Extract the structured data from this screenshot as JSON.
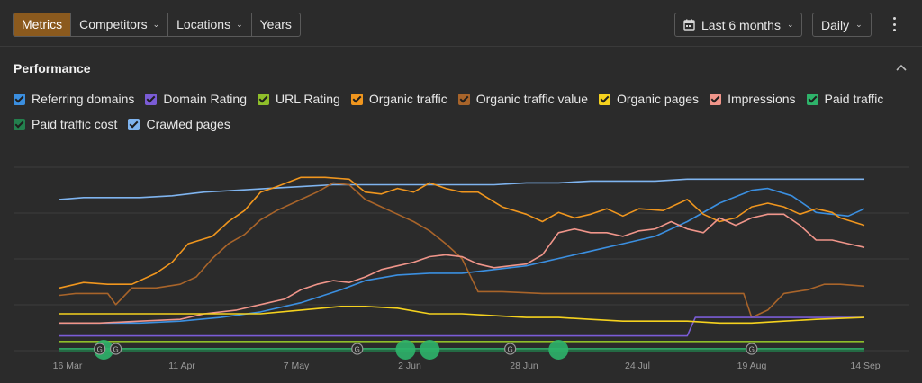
{
  "toolbar": {
    "tabs": [
      {
        "label": "Metrics",
        "active": true,
        "dropdown": false
      },
      {
        "label": "Competitors",
        "active": false,
        "dropdown": true
      },
      {
        "label": "Locations",
        "active": false,
        "dropdown": true
      },
      {
        "label": "Years",
        "active": false,
        "dropdown": false
      }
    ],
    "date_range": "Last 6 months",
    "granularity": "Daily",
    "icons": {
      "calendar": "calendar-icon",
      "more": "more-vertical-icon"
    }
  },
  "section": {
    "title": "Performance",
    "collapse_icon": "chevron-up-icon"
  },
  "legend": [
    {
      "label": "Referring domains",
      "color": "#3b8fe0",
      "checked": true
    },
    {
      "label": "Domain Rating",
      "color": "#7b5cd6",
      "checked": true
    },
    {
      "label": "URL Rating",
      "color": "#8fbf2a",
      "checked": true
    },
    {
      "label": "Organic traffic",
      "color": "#f0961e",
      "checked": true
    },
    {
      "label": "Organic traffic value",
      "color": "#a8642a",
      "checked": true
    },
    {
      "label": "Organic pages",
      "color": "#f5d21e",
      "checked": true
    },
    {
      "label": "Impressions",
      "color": "#f0958a",
      "checked": true
    },
    {
      "label": "Paid traffic",
      "color": "#2eb36a",
      "checked": true
    },
    {
      "label": "Paid traffic cost",
      "color": "#23804d",
      "checked": true
    },
    {
      "label": "Crawled pages",
      "color": "#7fb4ef",
      "checked": true
    }
  ],
  "chart_data": {
    "type": "line",
    "x_ticks": [
      "16 Mar",
      "11 Apr",
      "7 May",
      "2 Jun",
      "28 Jun",
      "24 Jul",
      "19 Aug",
      "14 Sep"
    ],
    "grid": true,
    "ylim": [
      0,
      100
    ],
    "series": [
      {
        "name": "Crawled pages",
        "color": "#7fb4ef",
        "values": [
          [
            0,
            82
          ],
          [
            3,
            83
          ],
          [
            6,
            83
          ],
          [
            10,
            83
          ],
          [
            14,
            84
          ],
          [
            18,
            86
          ],
          [
            22,
            87
          ],
          [
            26,
            88
          ],
          [
            30,
            89
          ],
          [
            34,
            90
          ],
          [
            38,
            90
          ],
          [
            42,
            90
          ],
          [
            46,
            90
          ],
          [
            50,
            90
          ],
          [
            54,
            90
          ],
          [
            58,
            91
          ],
          [
            62,
            91
          ],
          [
            66,
            92
          ],
          [
            70,
            92
          ],
          [
            74,
            92
          ],
          [
            78,
            93
          ],
          [
            82,
            93
          ],
          [
            86,
            93
          ],
          [
            90,
            93
          ],
          [
            94,
            93
          ],
          [
            100,
            93
          ]
        ]
      },
      {
        "name": "Referring domains",
        "color": "#3b8fe0",
        "values": [
          [
            0,
            15
          ],
          [
            5,
            15
          ],
          [
            10,
            15
          ],
          [
            15,
            16
          ],
          [
            20,
            18
          ],
          [
            25,
            21
          ],
          [
            30,
            26
          ],
          [
            35,
            33
          ],
          [
            38,
            38
          ],
          [
            42,
            41
          ],
          [
            46,
            42
          ],
          [
            50,
            42
          ],
          [
            54,
            44
          ],
          [
            58,
            46
          ],
          [
            62,
            50
          ],
          [
            66,
            54
          ],
          [
            70,
            58
          ],
          [
            74,
            62
          ],
          [
            78,
            70
          ],
          [
            82,
            80
          ],
          [
            86,
            87
          ],
          [
            88,
            88
          ],
          [
            91,
            84
          ],
          [
            94,
            75
          ],
          [
            98,
            73
          ],
          [
            100,
            77
          ]
        ]
      },
      {
        "name": "Organic traffic",
        "color": "#f0961e",
        "values": [
          [
            0,
            34
          ],
          [
            3,
            37
          ],
          [
            6,
            36
          ],
          [
            9,
            36
          ],
          [
            12,
            42
          ],
          [
            14,
            48
          ],
          [
            16,
            58
          ],
          [
            19,
            62
          ],
          [
            21,
            70
          ],
          [
            23,
            76
          ],
          [
            25,
            86
          ],
          [
            27,
            89
          ],
          [
            30,
            94
          ],
          [
            33,
            94
          ],
          [
            36,
            93
          ],
          [
            38,
            86
          ],
          [
            40,
            85
          ],
          [
            42,
            88
          ],
          [
            44,
            86
          ],
          [
            46,
            91
          ],
          [
            48,
            88
          ],
          [
            50,
            86
          ],
          [
            52,
            86
          ],
          [
            55,
            78
          ],
          [
            58,
            74
          ],
          [
            60,
            70
          ],
          [
            62,
            75
          ],
          [
            64,
            72
          ],
          [
            66,
            74
          ],
          [
            68,
            77
          ],
          [
            70,
            73
          ],
          [
            72,
            77
          ],
          [
            75,
            76
          ],
          [
            78,
            82
          ],
          [
            80,
            74
          ],
          [
            82,
            70
          ],
          [
            84,
            72
          ],
          [
            86,
            78
          ],
          [
            88,
            80
          ],
          [
            90,
            78
          ],
          [
            92,
            74
          ],
          [
            94,
            77
          ],
          [
            96,
            75
          ],
          [
            97,
            72
          ],
          [
            100,
            68
          ]
        ]
      },
      {
        "name": "Organic traffic value",
        "color": "#a8642a",
        "values": [
          [
            0,
            30
          ],
          [
            2,
            31
          ],
          [
            6,
            31
          ],
          [
            7,
            25
          ],
          [
            9,
            34
          ],
          [
            12,
            34
          ],
          [
            15,
            36
          ],
          [
            17,
            40
          ],
          [
            19,
            50
          ],
          [
            21,
            58
          ],
          [
            23,
            63
          ],
          [
            25,
            71
          ],
          [
            27,
            76
          ],
          [
            30,
            82
          ],
          [
            32,
            86
          ],
          [
            34,
            91
          ],
          [
            36,
            90
          ],
          [
            38,
            82
          ],
          [
            40,
            78
          ],
          [
            42,
            74
          ],
          [
            44,
            70
          ],
          [
            46,
            65
          ],
          [
            48,
            58
          ],
          [
            50,
            50
          ],
          [
            52,
            32
          ],
          [
            55,
            32
          ],
          [
            60,
            31
          ],
          [
            65,
            31
          ],
          [
            70,
            31
          ],
          [
            75,
            31
          ],
          [
            80,
            31
          ],
          [
            85,
            31
          ],
          [
            86,
            18
          ],
          [
            88,
            22
          ],
          [
            90,
            31
          ],
          [
            93,
            33
          ],
          [
            95,
            36
          ],
          [
            97,
            36
          ],
          [
            100,
            35
          ]
        ]
      },
      {
        "name": "Impressions",
        "color": "#f0958a",
        "values": [
          [
            0,
            15
          ],
          [
            5,
            15
          ],
          [
            10,
            16
          ],
          [
            15,
            17
          ],
          [
            18,
            20
          ],
          [
            22,
            22
          ],
          [
            26,
            26
          ],
          [
            28,
            28
          ],
          [
            30,
            33
          ],
          [
            32,
            36
          ],
          [
            34,
            38
          ],
          [
            36,
            37
          ],
          [
            38,
            40
          ],
          [
            40,
            44
          ],
          [
            42,
            46
          ],
          [
            44,
            48
          ],
          [
            46,
            51
          ],
          [
            48,
            52
          ],
          [
            50,
            51
          ],
          [
            52,
            47
          ],
          [
            54,
            45
          ],
          [
            56,
            46
          ],
          [
            58,
            47
          ],
          [
            60,
            52
          ],
          [
            62,
            64
          ],
          [
            64,
            66
          ],
          [
            66,
            64
          ],
          [
            68,
            64
          ],
          [
            70,
            62
          ],
          [
            72,
            65
          ],
          [
            74,
            66
          ],
          [
            76,
            70
          ],
          [
            78,
            66
          ],
          [
            80,
            64
          ],
          [
            82,
            72
          ],
          [
            84,
            68
          ],
          [
            86,
            72
          ],
          [
            88,
            74
          ],
          [
            90,
            74
          ],
          [
            92,
            68
          ],
          [
            94,
            60
          ],
          [
            96,
            60
          ],
          [
            98,
            58
          ],
          [
            100,
            56
          ]
        ]
      },
      {
        "name": "Domain Rating",
        "color": "#7b5cd6",
        "values": [
          [
            0,
            8
          ],
          [
            10,
            8
          ],
          [
            20,
            8
          ],
          [
            30,
            8
          ],
          [
            40,
            8
          ],
          [
            50,
            8
          ],
          [
            60,
            8
          ],
          [
            70,
            8
          ],
          [
            78,
            8
          ],
          [
            79,
            18
          ],
          [
            85,
            18
          ],
          [
            90,
            18
          ],
          [
            95,
            18
          ],
          [
            100,
            18
          ]
        ]
      },
      {
        "name": "Organic pages",
        "color": "#f5d21e",
        "values": [
          [
            0,
            20
          ],
          [
            5,
            20
          ],
          [
            10,
            20
          ],
          [
            15,
            20
          ],
          [
            20,
            20
          ],
          [
            25,
            20
          ],
          [
            30,
            22
          ],
          [
            35,
            24
          ],
          [
            38,
            24
          ],
          [
            42,
            23
          ],
          [
            46,
            20
          ],
          [
            50,
            20
          ],
          [
            54,
            19
          ],
          [
            58,
            18
          ],
          [
            62,
            18
          ],
          [
            66,
            17
          ],
          [
            70,
            16
          ],
          [
            74,
            16
          ],
          [
            78,
            16
          ],
          [
            82,
            15
          ],
          [
            86,
            15
          ],
          [
            90,
            16
          ],
          [
            94,
            17
          ],
          [
            100,
            18
          ]
        ]
      },
      {
        "name": "URL Rating",
        "color": "#8fbf2a",
        "values": [
          [
            0,
            5
          ],
          [
            20,
            5
          ],
          [
            40,
            5
          ],
          [
            60,
            5
          ],
          [
            80,
            5
          ],
          [
            100,
            5
          ]
        ]
      },
      {
        "name": "Paid traffic",
        "color": "#2eb36a",
        "values": [
          [
            0,
            1
          ],
          [
            20,
            1
          ],
          [
            40,
            1
          ],
          [
            60,
            1
          ],
          [
            80,
            1
          ],
          [
            100,
            1
          ]
        ]
      },
      {
        "name": "Paid traffic cost",
        "color": "#23804d",
        "values": [
          [
            0,
            0
          ],
          [
            20,
            0
          ],
          [
            40,
            0
          ],
          [
            60,
            0
          ],
          [
            80,
            0
          ],
          [
            100,
            0
          ]
        ]
      }
    ],
    "annotations": [
      {
        "type": "google-update",
        "label": "G",
        "x": 5
      },
      {
        "type": "google-update",
        "label": "G",
        "x": 7
      },
      {
        "type": "google-update",
        "label": "G",
        "x": 37
      },
      {
        "type": "google-update",
        "label": "G",
        "x": 56
      },
      {
        "type": "google-update",
        "label": "G",
        "x": 86
      }
    ],
    "event_markers": [
      {
        "type": "event",
        "x": 5.5
      },
      {
        "type": "event",
        "x": 43
      },
      {
        "type": "event",
        "x": 46
      },
      {
        "type": "event",
        "x": 62
      }
    ]
  }
}
